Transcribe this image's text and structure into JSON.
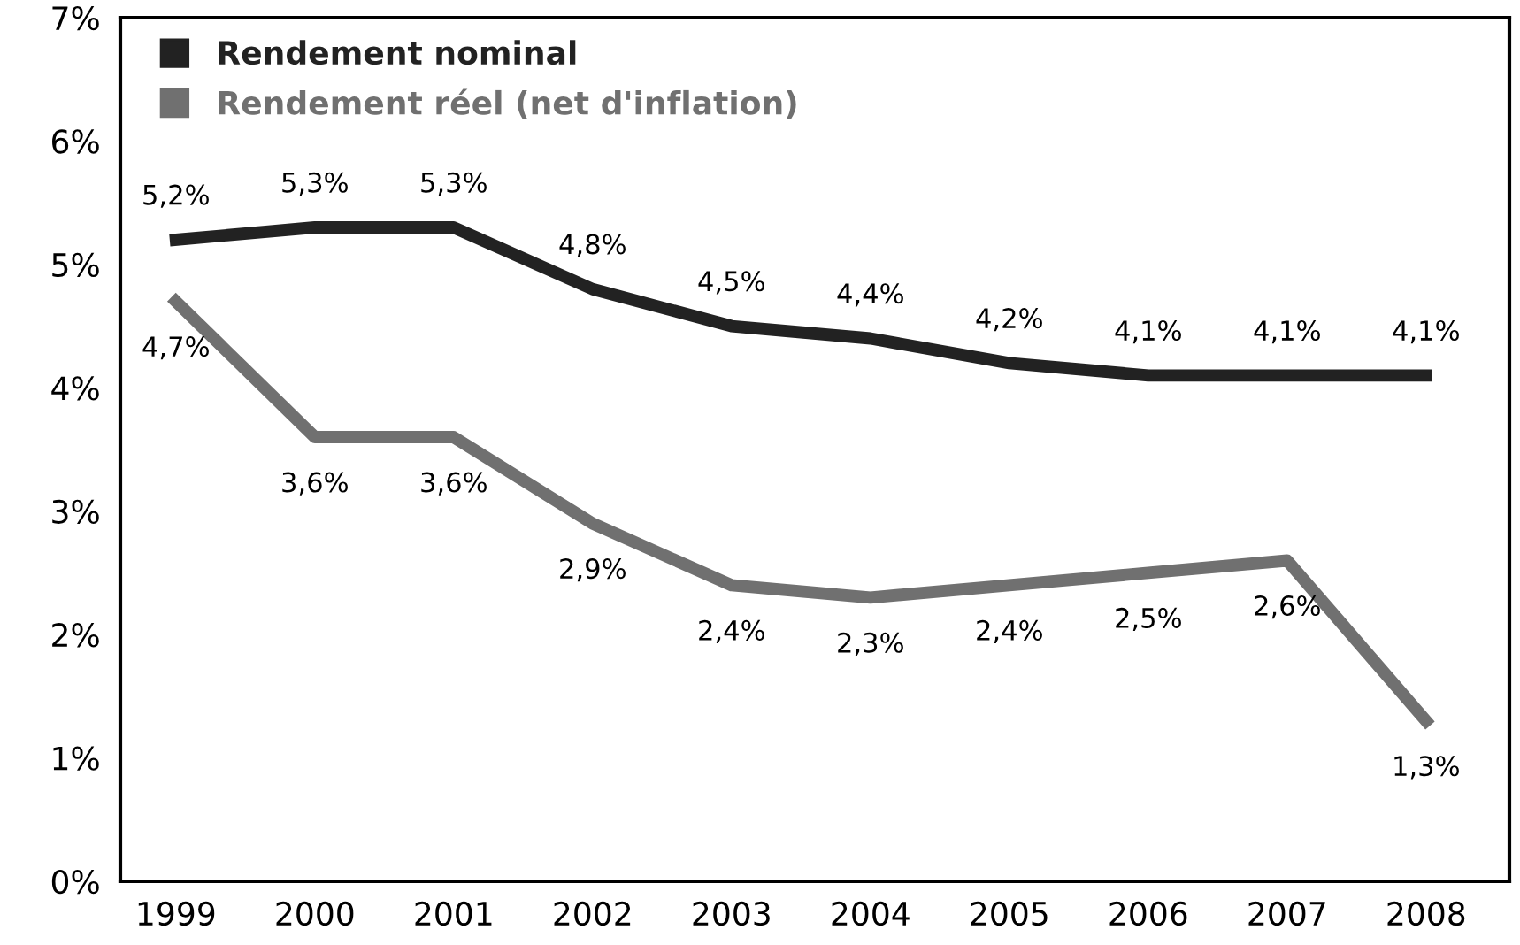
{
  "chart_data": {
    "type": "line",
    "categories": [
      "1999",
      "2000",
      "2001",
      "2002",
      "2003",
      "2004",
      "2005",
      "2006",
      "2007",
      "2008"
    ],
    "series": [
      {
        "name": "Rendement nominal",
        "color": "#222222",
        "values": [
          5.2,
          5.3,
          5.3,
          4.8,
          4.5,
          4.4,
          4.2,
          4.1,
          4.1,
          4.1
        ],
        "value_labels": [
          "5,2%",
          "5,3%",
          "5,3%",
          "4,8%",
          "4,5%",
          "4,4%",
          "4,2%",
          "4,1%",
          "4,1%",
          "4,1%"
        ]
      },
      {
        "name": "Rendement réel (net d'inflation)",
        "color": "#707070",
        "values": [
          4.7,
          3.6,
          3.6,
          2.9,
          2.4,
          2.3,
          2.4,
          2.5,
          2.6,
          1.3
        ],
        "value_labels": [
          "4,7%",
          "3,6%",
          "3,6%",
          "2,9%",
          "2,4%",
          "2,3%",
          "2,4%",
          "2,5%",
          "2,6%",
          "1,3%"
        ]
      }
    ],
    "ylim": [
      0,
      7
    ],
    "yticks": [
      {
        "value": 0,
        "label": "0%"
      },
      {
        "value": 1,
        "label": "1%"
      },
      {
        "value": 2,
        "label": "2%"
      },
      {
        "value": 3,
        "label": "3%"
      },
      {
        "value": 4,
        "label": "4%"
      },
      {
        "value": 5,
        "label": "5%"
      },
      {
        "value": 6,
        "label": "6%"
      },
      {
        "value": 7,
        "label": "7%"
      }
    ],
    "grid": false,
    "legend": "top left",
    "marker": "none",
    "line_style": "solid"
  }
}
